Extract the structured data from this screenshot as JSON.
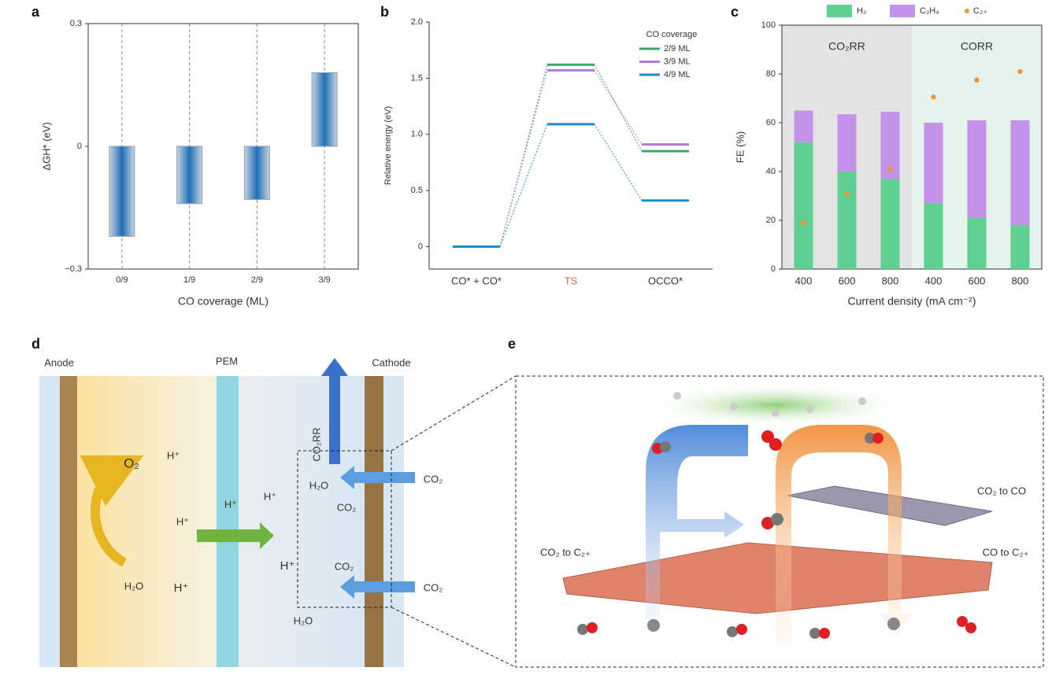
{
  "chart_data": [
    {
      "type": "bar",
      "label": "a",
      "categories": [
        "0/9",
        "1/9",
        "2/9",
        "3/9"
      ],
      "values": [
        -0.22,
        -0.14,
        -0.13,
        0.18
      ],
      "ylim": [
        -0.3,
        0.3
      ],
      "yticks": [
        {
          "value": -0.3,
          "label": "−0.3"
        },
        0,
        0.3
      ],
      "xlabel": "CO coverage (ML)",
      "ylabel": "ΔGH* (eV)",
      "color": "#2a6fb5",
      "grid": true
    },
    {
      "type": "line",
      "label": "b",
      "categories": [
        "CO* + CO*",
        "TS",
        "OCCO*"
      ],
      "category_colors": [
        "#333333",
        "#e0664f",
        "#333333"
      ],
      "series": [
        {
          "name": "2/9 ML",
          "color": "#3aa66a",
          "values": [
            0,
            1.62,
            0.85
          ]
        },
        {
          "name": "3/9 ML",
          "color": "#b07ad8",
          "values": [
            0,
            1.57,
            0.91
          ]
        },
        {
          "name": "4/9 ML",
          "color": "#1f8cc8",
          "values": [
            0,
            1.09,
            0.41
          ]
        }
      ],
      "ylim": [
        -0.2,
        2.0
      ],
      "yticks": [
        0,
        0.5,
        {
          "value": 1.0,
          "label": "1.0"
        },
        1.5,
        {
          "value": 2.0,
          "label": "2.0"
        }
      ],
      "ylabel": "Relative energy (eV)",
      "legend_title": "CO coverage",
      "legend": "upper right"
    },
    {
      "type": "bar",
      "stacked": true,
      "label": "c",
      "categories": [
        "400",
        "600",
        "800",
        "400",
        "600",
        "800"
      ],
      "regions": [
        {
          "label": "CO₂RR",
          "color": "#e3e3e3"
        },
        {
          "label": "CORR",
          "color": "#e4f3eb"
        }
      ],
      "series": [
        {
          "name": "H₂",
          "color": "#5fcf92",
          "values": [
            52,
            40,
            37,
            27,
            21,
            18
          ]
        },
        {
          "name": "C₂H₄",
          "color": "#c592ea",
          "values": [
            13,
            23.5,
            27.5,
            33,
            40,
            43
          ]
        },
        {
          "name": "C₂₊",
          "type": "scatter",
          "color": "#f0962f",
          "values": [
            19,
            31,
            41,
            70.5,
            77.5,
            81
          ]
        }
      ],
      "ylim": [
        0,
        100
      ],
      "yticks": [
        0,
        20,
        40,
        60,
        80,
        100
      ],
      "xlabel": "Current density (mA cm⁻²)",
      "ylabel": "FE (%)",
      "legend": "top"
    }
  ],
  "panels": {
    "d": {
      "label": "d",
      "texts": [
        "Anode",
        "PEM",
        "Cathode",
        "O₂",
        "H⁺",
        "H₂O",
        "H⁺",
        "H⁺",
        "H⁺",
        "H⁺",
        "H⁺",
        "CO₂RR",
        "H₂O",
        "CO₂",
        "CO₂",
        "CO₂",
        "CO₂",
        "H₂O"
      ]
    },
    "e": {
      "label": "e",
      "texts": [
        "CO₂ to CO",
        "CO₂ to C₂₊",
        "CO to C₂₊"
      ]
    }
  }
}
